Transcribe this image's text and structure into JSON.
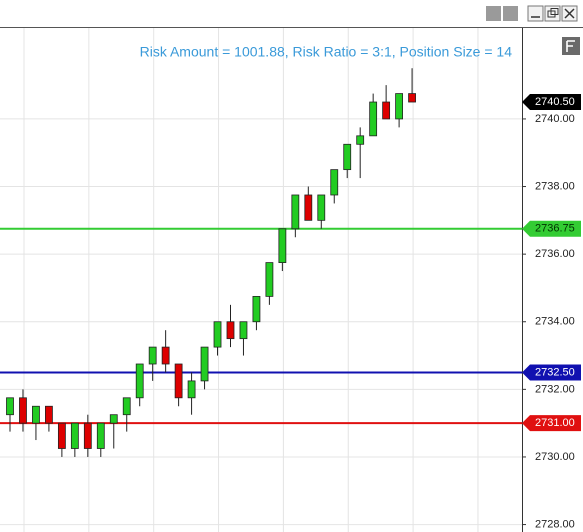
{
  "chart_data": {
    "type": "candlestick",
    "annotation": "Risk Amount = 1001.88, Risk Ratio = 3:1, Position Size = 14",
    "annotation_color": "#3a9ad9",
    "up_color": "#22cc22",
    "down_color": "#dd0000",
    "open": [
      2731.25,
      2731.75,
      2731.0,
      2731.5,
      2731.0,
      2730.25,
      2731.0,
      2730.25,
      2731.0,
      2731.25,
      2731.75,
      2732.75,
      2733.25,
      2732.75,
      2731.75,
      2732.25,
      2733.25,
      2734.0,
      2733.5,
      2734.0,
      2734.75,
      2735.75,
      2736.75,
      2737.75,
      2737.0,
      2737.75,
      2738.5,
      2739.25,
      2739.5,
      2740.5,
      2740.0,
      2740.75
    ],
    "high": [
      2731.75,
      2732.0,
      2731.5,
      2731.5,
      2731.0,
      2731.0,
      2731.25,
      2731.0,
      2731.25,
      2731.75,
      2732.75,
      2733.25,
      2733.75,
      2732.75,
      2732.5,
      2733.25,
      2734.0,
      2734.5,
      2734.0,
      2734.75,
      2735.75,
      2736.75,
      2737.75,
      2738.0,
      2737.75,
      2738.5,
      2739.25,
      2739.75,
      2740.75,
      2741.0,
      2740.75,
      2741.5
    ],
    "low": [
      2730.75,
      2730.75,
      2730.5,
      2730.75,
      2730.0,
      2730.0,
      2730.0,
      2730.0,
      2730.25,
      2730.75,
      2731.5,
      2732.25,
      2732.5,
      2731.5,
      2731.25,
      2732.0,
      2733.0,
      2733.25,
      2733.0,
      2733.75,
      2734.5,
      2735.5,
      2736.5,
      2737.0,
      2736.75,
      2737.5,
      2738.25,
      2738.25,
      2739.5,
      2740.0,
      2739.75,
      2740.5
    ],
    "close": [
      2731.75,
      2731.0,
      2731.5,
      2731.0,
      2730.25,
      2731.0,
      2730.25,
      2731.0,
      2731.25,
      2731.75,
      2732.75,
      2733.25,
      2732.75,
      2731.75,
      2732.25,
      2733.25,
      2734.0,
      2733.5,
      2734.0,
      2734.75,
      2735.75,
      2736.75,
      2737.75,
      2737.0,
      2737.75,
      2738.5,
      2739.25,
      2739.5,
      2740.5,
      2740.0,
      2740.75,
      2740.5
    ],
    "ylim": [
      2727.78,
      2742.69
    ],
    "yticks": [
      {
        "value": 2728,
        "label": "2728.00"
      },
      {
        "value": 2730,
        "label": "2730.00"
      },
      {
        "value": 2732,
        "label": "2732.00"
      },
      {
        "value": 2734,
        "label": "2734.00"
      },
      {
        "value": 2736,
        "label": "2736.00"
      },
      {
        "value": 2738,
        "label": "2738.00"
      },
      {
        "value": 2740,
        "label": "2740.00"
      }
    ],
    "grid": true,
    "levels": [
      {
        "value": 2736.75,
        "label": "2736.75",
        "color": "#33cc33",
        "text_color": "#003300"
      },
      {
        "value": 2732.5,
        "label": "2732.50",
        "color": "#1010b0",
        "text_color": "#ffffff"
      },
      {
        "value": 2731,
        "label": "2731.00",
        "color": "#e01010",
        "text_color": "#ffffff"
      }
    ],
    "last_price": {
      "value": 2740.5,
      "label": "2740.50",
      "color": "#000000",
      "text_color": "#ffffff"
    }
  }
}
